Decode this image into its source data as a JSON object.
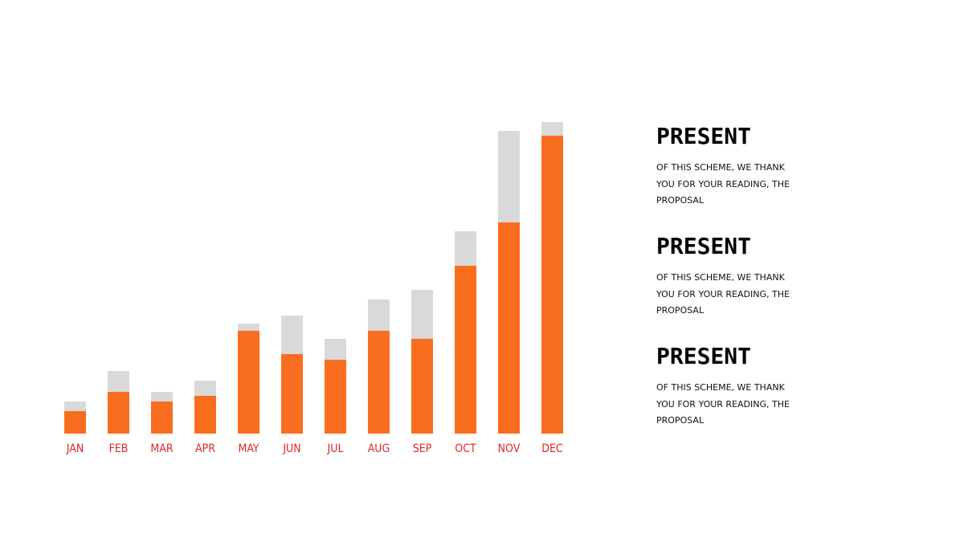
{
  "chart_data": {
    "type": "bar",
    "stacked": true,
    "categories": [
      "JAN",
      "FEB",
      "MAR",
      "APR",
      "MAY",
      "JUN",
      "JUL",
      "AUG",
      "SEP",
      "OCT",
      "NOV",
      "DEC"
    ],
    "series": [
      {
        "values": [
          28,
          52,
          40,
          47,
          128,
          99,
          92,
          128,
          118,
          209,
          263,
          371
        ],
        "color": "#f96d1f"
      },
      {
        "values": [
          12,
          26,
          12,
          19,
          9,
          48,
          26,
          39,
          61,
          43,
          114,
          17
        ],
        "color": "#d9d9d9"
      }
    ],
    "ylim": [
      0,
      400
    ],
    "grid": false,
    "legend": "none"
  },
  "colors": {
    "primary": "#f96d1f",
    "secondary": "#d9d9d9",
    "label": "#e0262a"
  },
  "info_blocks": [
    {
      "title": "PRESENT",
      "text": "OF THIS SCHEME, WE THANK YOU FOR YOUR READING, THE PROPOSAL"
    },
    {
      "title": "PRESENT",
      "text": "OF THIS SCHEME, WE THANK YOU FOR YOUR READING, THE PROPOSAL"
    },
    {
      "title": "PRESENT",
      "text": "OF THIS SCHEME, WE THANK YOU FOR YOUR READING, THE PROPOSAL"
    }
  ]
}
